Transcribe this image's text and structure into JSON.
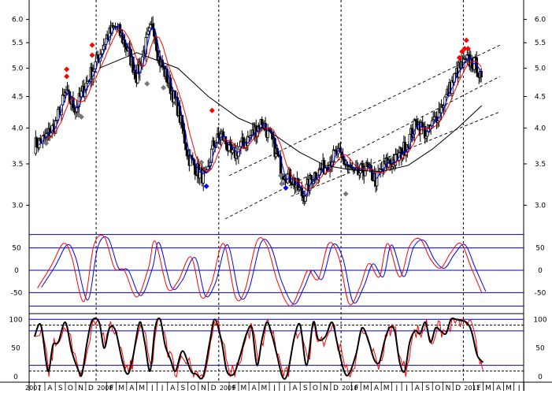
{
  "chart_data": [
    {
      "panel": "price",
      "type": "candlestick",
      "scale": "log",
      "ylim": [
        2.75,
        6.3
      ],
      "yticks": [
        3.0,
        3.5,
        4.0,
        4.5,
        5.0,
        5.5,
        6.0
      ],
      "ytick_labels": [
        "3.0",
        "3.5",
        "4.0",
        "4.5",
        "5.0",
        "5.5",
        "6.0"
      ],
      "grid": false,
      "price_key": [
        [
          "2007-07-01",
          3.75
        ],
        [
          "2007-08-01",
          3.85
        ],
        [
          "2007-09-01",
          4.05
        ],
        [
          "2007-10-01",
          4.55
        ],
        [
          "2007-11-01",
          4.3
        ],
        [
          "2007-12-01",
          4.7
        ],
        [
          "2008-01-01",
          5.1
        ],
        [
          "2008-02-01",
          5.6
        ],
        [
          "2008-03-01",
          5.85
        ],
        [
          "2008-04-01",
          5.4
        ],
        [
          "2008-05-01",
          4.85
        ],
        [
          "2008-06-01",
          5.55
        ],
        [
          "2008-06-20",
          5.9
        ],
        [
          "2008-07-05",
          5.2
        ],
        [
          "2008-08-01",
          4.8
        ],
        [
          "2008-09-01",
          4.3
        ],
        [
          "2008-10-01",
          3.6
        ],
        [
          "2008-11-01",
          3.4
        ],
        [
          "2008-11-25",
          3.3
        ],
        [
          "2008-12-15",
          3.75
        ],
        [
          "2009-01-10",
          3.9
        ],
        [
          "2009-02-10",
          3.6
        ],
        [
          "2009-03-10",
          3.75
        ],
        [
          "2009-04-10",
          3.9
        ],
        [
          "2009-05-10",
          4.1
        ],
        [
          "2009-06-10",
          3.8
        ],
        [
          "2009-07-10",
          3.4
        ],
        [
          "2009-08-10",
          3.3
        ],
        [
          "2009-09-10",
          3.1
        ],
        [
          "2009-10-10",
          3.35
        ],
        [
          "2009-11-10",
          3.45
        ],
        [
          "2009-12-20",
          3.65
        ],
        [
          "2010-01-15",
          3.5
        ],
        [
          "2010-02-15",
          3.35
        ],
        [
          "2010-03-15",
          3.45
        ],
        [
          "2010-04-15",
          3.3
        ],
        [
          "2010-05-15",
          3.5
        ],
        [
          "2010-06-15",
          3.55
        ],
        [
          "2010-07-15",
          3.75
        ],
        [
          "2010-08-15",
          4.1
        ],
        [
          "2010-09-15",
          3.9
        ],
        [
          "2010-10-15",
          4.2
        ],
        [
          "2010-11-15",
          4.55
        ],
        [
          "2010-12-15",
          4.95
        ],
        [
          "2011-01-15",
          5.15
        ],
        [
          "2011-02-10",
          5.05
        ],
        [
          "2011-02-25",
          4.7
        ]
      ],
      "markers": {
        "red_diamonds": [
          [
            "2007-10-05",
            4.98
          ],
          [
            "2007-10-05",
            4.85
          ],
          [
            "2007-12-20",
            5.45
          ],
          [
            "2007-12-20",
            5.25
          ],
          [
            "2008-12-12",
            4.27
          ],
          [
            "2010-12-20",
            5.2
          ],
          [
            "2010-12-28",
            5.32
          ],
          [
            "2011-01-05",
            5.38
          ],
          [
            "2011-01-10",
            5.55
          ],
          [
            "2011-01-15",
            5.38
          ]
        ],
        "gray_diamonds": [
          [
            "2007-08-05",
            3.78
          ],
          [
            "2007-11-10",
            4.2
          ],
          [
            "2007-11-18",
            4.17
          ],
          [
            "2008-06-01",
            4.72
          ],
          [
            "2008-07-20",
            4.65
          ],
          [
            "2008-11-10",
            3.52
          ],
          [
            "2009-02-25",
            3.7
          ],
          [
            "2009-07-05",
            3.35
          ],
          [
            "2009-07-08",
            3.25
          ],
          [
            "2010-01-15",
            3.13
          ]
        ],
        "blue_diamonds": [
          [
            "2008-11-25",
            3.22
          ],
          [
            "2009-07-20",
            3.2
          ]
        ]
      },
      "moving_averages": {
        "short_blue": "short-term average",
        "mid_red": "medium-term average",
        "long_black": [
          [
            "2008-01-10",
            5.0
          ],
          [
            "2008-05-01",
            5.3
          ],
          [
            "2008-09-01",
            5.0
          ],
          [
            "2008-12-01",
            4.5
          ],
          [
            "2009-03-01",
            4.15
          ],
          [
            "2009-06-01",
            3.95
          ],
          [
            "2009-09-01",
            3.65
          ],
          [
            "2009-11-15",
            3.48
          ],
          [
            "2010-02-01",
            3.42
          ],
          [
            "2010-05-01",
            3.4
          ],
          [
            "2010-07-20",
            3.48
          ],
          [
            "2010-10-01",
            3.7
          ],
          [
            "2010-12-15",
            4.0
          ],
          [
            "2011-02-25",
            4.35
          ]
        ]
      },
      "trend_channel": [
        {
          "from": [
            "2009-02-01",
            3.35
          ],
          "to": [
            "2011-04-20",
            5.45
          ]
        },
        {
          "from": [
            "2009-01-20",
            2.85
          ],
          "to": [
            "2011-04-20",
            4.85
          ]
        },
        {
          "from": [
            "2009-08-05",
            3.1
          ],
          "to": [
            "2011-04-20",
            4.25
          ]
        }
      ]
    },
    {
      "panel": "oscillator_middle",
      "type": "line",
      "ylim": [
        -90,
        90
      ],
      "yticks": [
        50,
        0,
        -50
      ],
      "ytick_labels": [
        "50",
        "0",
        "-50"
      ],
      "reference_lines": [
        80,
        50,
        0,
        -50,
        -80
      ],
      "series_red": [
        [
          "2007-07-10",
          -40
        ],
        [
          "2007-08-20",
          10
        ],
        [
          "2007-09-25",
          60
        ],
        [
          "2007-10-20",
          30
        ],
        [
          "2007-11-25",
          -70
        ],
        [
          "2007-12-25",
          55
        ],
        [
          "2008-01-25",
          75
        ],
        [
          "2008-02-25",
          5
        ],
        [
          "2008-03-25",
          0
        ],
        [
          "2008-05-01",
          -60
        ],
        [
          "2008-06-05",
          5
        ],
        [
          "2008-06-25",
          65
        ],
        [
          "2008-08-01",
          -40
        ],
        [
          "2008-09-01",
          -25
        ],
        [
          "2008-10-10",
          30
        ],
        [
          "2008-11-10",
          -60
        ],
        [
          "2008-12-10",
          -30
        ],
        [
          "2009-01-15",
          60
        ],
        [
          "2009-02-20",
          -60
        ],
        [
          "2009-03-20",
          -45
        ],
        [
          "2009-04-25",
          65
        ],
        [
          "2009-05-25",
          55
        ],
        [
          "2009-06-25",
          -25
        ],
        [
          "2009-08-01",
          -80
        ],
        [
          "2009-09-01",
          -40
        ],
        [
          "2009-09-25",
          0
        ],
        [
          "2009-10-25",
          -20
        ],
        [
          "2009-11-25",
          60
        ],
        [
          "2009-12-25",
          30
        ],
        [
          "2010-01-25",
          -75
        ],
        [
          "2010-02-25",
          -40
        ],
        [
          "2010-03-25",
          15
        ],
        [
          "2010-04-25",
          -15
        ],
        [
          "2010-05-20",
          60
        ],
        [
          "2010-06-25",
          -15
        ],
        [
          "2010-07-25",
          55
        ],
        [
          "2010-08-25",
          70
        ],
        [
          "2010-09-25",
          25
        ],
        [
          "2010-10-25",
          5
        ],
        [
          "2010-11-25",
          40
        ],
        [
          "2010-12-25",
          60
        ],
        [
          "2011-01-25",
          5
        ],
        [
          "2011-02-25",
          -50
        ]
      ],
      "series_blue_lag_days": 12
    },
    {
      "panel": "oscillator_bottom",
      "type": "line",
      "ylim": [
        -8,
        110
      ],
      "yticks": [
        100,
        50,
        0
      ],
      "ytick_labels": [
        "100",
        "50",
        "0"
      ],
      "reference_lines": [
        100,
        90,
        80,
        20,
        10
      ],
      "series_black": [
        [
          "2007-07-01",
          70
        ],
        [
          "2007-07-20",
          90
        ],
        [
          "2007-08-10",
          10
        ],
        [
          "2007-08-25",
          55
        ],
        [
          "2007-09-10",
          60
        ],
        [
          "2007-10-01",
          95
        ],
        [
          "2007-10-20",
          45
        ],
        [
          "2007-11-10",
          10
        ],
        [
          "2007-11-20",
          5
        ],
        [
          "2007-12-05",
          60
        ],
        [
          "2007-12-20",
          98
        ],
        [
          "2008-01-10",
          95
        ],
        [
          "2008-01-25",
          50
        ],
        [
          "2008-02-10",
          85
        ],
        [
          "2008-02-28",
          80
        ],
        [
          "2008-03-20",
          25
        ],
        [
          "2008-04-05",
          5
        ],
        [
          "2008-04-20",
          35
        ],
        [
          "2008-05-10",
          95
        ],
        [
          "2008-05-25",
          60
        ],
        [
          "2008-06-10",
          10
        ],
        [
          "2008-06-25",
          85
        ],
        [
          "2008-07-10",
          100
        ],
        [
          "2008-07-25",
          55
        ],
        [
          "2008-08-10",
          30
        ],
        [
          "2008-08-25",
          10
        ],
        [
          "2008-09-15",
          45
        ],
        [
          "2008-10-10",
          10
        ],
        [
          "2008-10-25",
          5
        ],
        [
          "2008-11-15",
          0
        ],
        [
          "2008-12-05",
          60
        ],
        [
          "2008-12-20",
          100
        ],
        [
          "2009-01-10",
          60
        ],
        [
          "2009-01-25",
          10
        ],
        [
          "2009-02-15",
          5
        ],
        [
          "2009-03-05",
          35
        ],
        [
          "2009-03-25",
          75
        ],
        [
          "2009-04-10",
          85
        ],
        [
          "2009-04-25",
          20
        ],
        [
          "2009-05-10",
          65
        ],
        [
          "2009-05-25",
          95
        ],
        [
          "2009-06-10",
          70
        ],
        [
          "2009-06-25",
          35
        ],
        [
          "2009-07-10",
          0
        ],
        [
          "2009-07-25",
          5
        ],
        [
          "2009-08-15",
          70
        ],
        [
          "2009-09-01",
          90
        ],
        [
          "2009-09-20",
          20
        ],
        [
          "2009-10-10",
          95
        ],
        [
          "2009-10-25",
          65
        ],
        [
          "2009-11-15",
          70
        ],
        [
          "2009-12-05",
          95
        ],
        [
          "2009-12-20",
          60
        ],
        [
          "2010-01-10",
          10
        ],
        [
          "2010-01-25",
          5
        ],
        [
          "2010-02-15",
          40
        ],
        [
          "2010-03-05",
          85
        ],
        [
          "2010-03-25",
          60
        ],
        [
          "2010-04-10",
          30
        ],
        [
          "2010-04-25",
          25
        ],
        [
          "2010-05-10",
          60
        ],
        [
          "2010-05-25",
          85
        ],
        [
          "2010-06-10",
          80
        ],
        [
          "2010-06-25",
          25
        ],
        [
          "2010-07-10",
          10
        ],
        [
          "2010-07-25",
          60
        ],
        [
          "2010-08-10",
          80
        ],
        [
          "2010-08-25",
          75
        ],
        [
          "2010-09-10",
          95
        ],
        [
          "2010-09-25",
          60
        ],
        [
          "2010-10-10",
          85
        ],
        [
          "2010-10-25",
          80
        ],
        [
          "2010-11-10",
          75
        ],
        [
          "2010-11-25",
          100
        ],
        [
          "2010-12-10",
          100
        ],
        [
          "2010-12-25",
          98
        ],
        [
          "2011-01-10",
          95
        ],
        [
          "2011-01-25",
          80
        ],
        [
          "2011-02-10",
          40
        ],
        [
          "2011-02-20",
          30
        ],
        [
          "2011-03-01",
          25
        ]
      ],
      "series_red_offset": 3
    }
  ],
  "x_axis": {
    "start": "2007-06-15",
    "end": "2011-06-30",
    "tick_labels": [
      {
        "date": "2007-07-01",
        "label": "J"
      },
      {
        "date": "2007-08-01",
        "label": "A"
      },
      {
        "date": "2007-09-01",
        "label": "S"
      },
      {
        "date": "2007-10-01",
        "label": "O"
      },
      {
        "date": "2007-11-01",
        "label": "N"
      },
      {
        "date": "2007-12-01",
        "label": "D"
      },
      {
        "date": "2008-02-01",
        "label": "F"
      },
      {
        "date": "2008-03-01",
        "label": "M"
      },
      {
        "date": "2008-04-01",
        "label": "A"
      },
      {
        "date": "2008-05-01",
        "label": "M"
      },
      {
        "date": "2008-06-01",
        "label": "J"
      },
      {
        "date": "2008-07-01",
        "label": "J"
      },
      {
        "date": "2008-08-01",
        "label": "A"
      },
      {
        "date": "2008-09-01",
        "label": "S"
      },
      {
        "date": "2008-10-01",
        "label": "O"
      },
      {
        "date": "2008-11-01",
        "label": "N"
      },
      {
        "date": "2008-12-01",
        "label": "D"
      },
      {
        "date": "2009-02-01",
        "label": "F"
      },
      {
        "date": "2009-03-01",
        "label": "M"
      },
      {
        "date": "2009-04-01",
        "label": "A"
      },
      {
        "date": "2009-05-01",
        "label": "M"
      },
      {
        "date": "2009-06-01",
        "label": "J"
      },
      {
        "date": "2009-07-01",
        "label": "J"
      },
      {
        "date": "2009-08-01",
        "label": "A"
      },
      {
        "date": "2009-09-01",
        "label": "S"
      },
      {
        "date": "2009-10-01",
        "label": "O"
      },
      {
        "date": "2009-11-01",
        "label": "N"
      },
      {
        "date": "2009-12-01",
        "label": "D"
      },
      {
        "date": "2010-02-01",
        "label": "F"
      },
      {
        "date": "2010-03-01",
        "label": "M"
      },
      {
        "date": "2010-04-01",
        "label": "A"
      },
      {
        "date": "2010-05-01",
        "label": "M"
      },
      {
        "date": "2010-06-01",
        "label": "J"
      },
      {
        "date": "2010-07-01",
        "label": "J"
      },
      {
        "date": "2010-08-01",
        "label": "A"
      },
      {
        "date": "2010-09-01",
        "label": "S"
      },
      {
        "date": "2010-10-01",
        "label": "O"
      },
      {
        "date": "2010-11-01",
        "label": "N"
      },
      {
        "date": "2010-12-01",
        "label": "D"
      },
      {
        "date": "2011-02-01",
        "label": "F"
      },
      {
        "date": "2011-03-01",
        "label": "M"
      },
      {
        "date": "2011-04-01",
        "label": "A"
      },
      {
        "date": "2011-05-01",
        "label": "M"
      },
      {
        "date": "2011-06-01",
        "label": "J"
      },
      {
        "date": "2011-07-01",
        "label": "J"
      }
    ],
    "year_labels": [
      {
        "date": "2007-06-01",
        "label": "2007"
      },
      {
        "date": "2008-01-01",
        "label": "2008"
      },
      {
        "date": "2009-01-01",
        "label": "2009"
      },
      {
        "date": "2010-01-01",
        "label": "2010"
      },
      {
        "date": "2011-01-01",
        "label": "2011"
      }
    ],
    "year_dividers": [
      "2008-01-01",
      "2009-01-01",
      "2010-01-01",
      "2011-01-01"
    ]
  },
  "colors": {
    "background": "#ffffff",
    "candle": "#000000",
    "ma_short": "#0000ff",
    "ma_mid": "#ff0000",
    "ma_long": "#000000",
    "channel": "#000000",
    "panel_lines": "#0000cc",
    "osc_red": "#ff0000",
    "osc_blue": "#0000ff",
    "osc_black": "#000000",
    "marker_red": "#ff0000",
    "marker_gray": "#777777",
    "marker_blue": "#0000ff"
  }
}
